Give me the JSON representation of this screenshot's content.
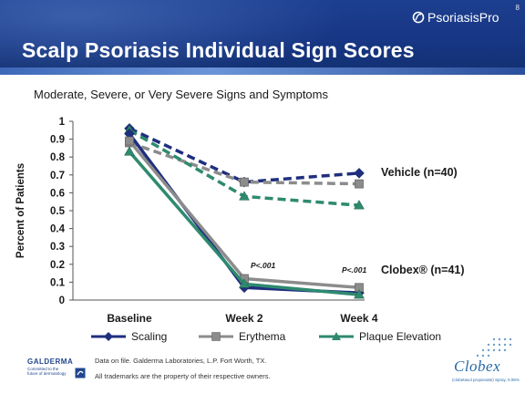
{
  "header": {
    "title": "Scalp Psoriasis Individual Sign Scores",
    "brand": "PsoriasisPro",
    "page_number": "8"
  },
  "subtitle": "Moderate, Severe, or Very Severe Signs and Symptoms",
  "footer": {
    "line1": "Data on file. Galderma Laboratories, L.P. Fort Worth, TX.",
    "line2": "All trademarks are the property of their respective owners.",
    "galderma_name": "GALDERMA",
    "galderma_tag": "Committed to the future of dermatology",
    "clobex_name": "Clobex",
    "clobex_tag": "(clobetasol propionate) Spray, 0.05%"
  },
  "colors": {
    "banner": "#173684",
    "scaling": "#1f2f7f",
    "erythema": "#8c8c8c",
    "plaque": "#2e8a6e"
  },
  "chart_data": {
    "type": "line",
    "title": "",
    "xlabel": "",
    "ylabel": "Percent of Patients",
    "categories": [
      "Baseline",
      "Week 2",
      "Week 4"
    ],
    "ylim": [
      0,
      1
    ],
    "yticks": [
      "0",
      "0.1",
      "0.2",
      "0.3",
      "0.4",
      "0.5",
      "0.6",
      "0.7",
      "0.8",
      "0.9",
      "1"
    ],
    "legend_position": "bottom",
    "groups": [
      {
        "label": "Vehicle (n=40)",
        "style": "dashed",
        "series": [
          {
            "name": "Scaling",
            "values": [
              0.96,
              0.66,
              0.71
            ]
          },
          {
            "name": "Erythema",
            "values": [
              0.88,
              0.66,
              0.65
            ]
          },
          {
            "name": "Plaque Elevation",
            "values": [
              0.95,
              0.58,
              0.53
            ]
          }
        ]
      },
      {
        "label": "Clobex® (n=41)",
        "style": "solid",
        "series": [
          {
            "name": "Scaling",
            "values": [
              0.93,
              0.07,
              0.04
            ]
          },
          {
            "name": "Erythema",
            "values": [
              0.89,
              0.12,
              0.07
            ]
          },
          {
            "name": "Plaque Elevation",
            "values": [
              0.83,
              0.09,
              0.03
            ]
          }
        ]
      }
    ],
    "annotations": [
      {
        "text": "P<.001",
        "category": "Week 2"
      },
      {
        "text": "P<.001",
        "category": "Week 4"
      }
    ],
    "legend": [
      "Scaling",
      "Erythema",
      "Plaque Elevation"
    ]
  }
}
